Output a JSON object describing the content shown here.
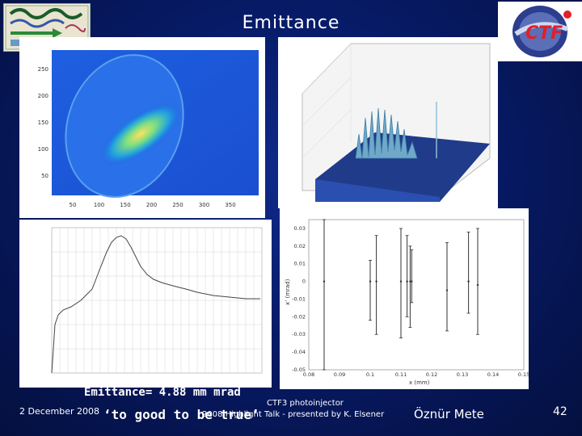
{
  "slide": {
    "title": "Emittance",
    "footer": {
      "date": "2 December 2008",
      "emittance_line": "Emittance= 4.88 mm mrad",
      "comment_line": "‘to good to be true’",
      "project": "CTF3 photoinjector",
      "talk": "2008 Highlight Talk - presented by K. Elsener",
      "author": "Öznür Mete",
      "page_number": "42"
    }
  },
  "logos": {
    "left": "ctf3-wave-logo",
    "right": "ctf3-circle-logo",
    "right_text": "CTF"
  },
  "chart_data": [
    {
      "type": "heatmap",
      "x_ticks": [
        "50",
        "100",
        "150",
        "200",
        "250",
        "300",
        "350"
      ],
      "y_ticks": [
        "250",
        "200",
        "150",
        "100",
        "50"
      ]
    },
    {
      "type": "surface3d"
    },
    {
      "type": "line"
    },
    {
      "type": "scatter",
      "ylabel": "x’ (mrad)",
      "xlabel": "x (mm)",
      "x_ticks": [
        "0.08",
        "0.09",
        "0.1",
        "0.11",
        "0.12",
        "0.13",
        "0.14",
        "0.15"
      ],
      "y_ticks": [
        "0.03",
        "0.02",
        "0.01",
        "0",
        "-0.01",
        "-0.02",
        "-0.03",
        "-0.04",
        "-0.05"
      ],
      "xlim": [
        0.08,
        0.15
      ],
      "ylim": [
        -0.05,
        0.035
      ],
      "errorbars": [
        {
          "x": 0.1,
          "y": 0.0,
          "lo": -0.022,
          "hi": 0.012
        },
        {
          "x": 0.102,
          "y": 0.0,
          "lo": -0.03,
          "hi": 0.026
        },
        {
          "x": 0.11,
          "y": 0.0,
          "lo": -0.032,
          "hi": 0.03
        },
        {
          "x": 0.112,
          "y": 0.0,
          "lo": -0.02,
          "hi": 0.026
        },
        {
          "x": 0.113,
          "y": 0.0,
          "lo": -0.026,
          "hi": 0.02
        },
        {
          "x": 0.1135,
          "y": 0.0,
          "lo": -0.012,
          "hi": 0.018
        },
        {
          "x": 0.125,
          "y": -0.005,
          "lo": -0.028,
          "hi": 0.022
        },
        {
          "x": 0.132,
          "y": 0.0,
          "lo": -0.018,
          "hi": 0.028
        },
        {
          "x": 0.135,
          "y": -0.002,
          "lo": -0.03,
          "hi": 0.03
        },
        {
          "x": 0.085,
          "y": 0.0,
          "lo": -0.05,
          "hi": 0.035
        }
      ]
    }
  ]
}
